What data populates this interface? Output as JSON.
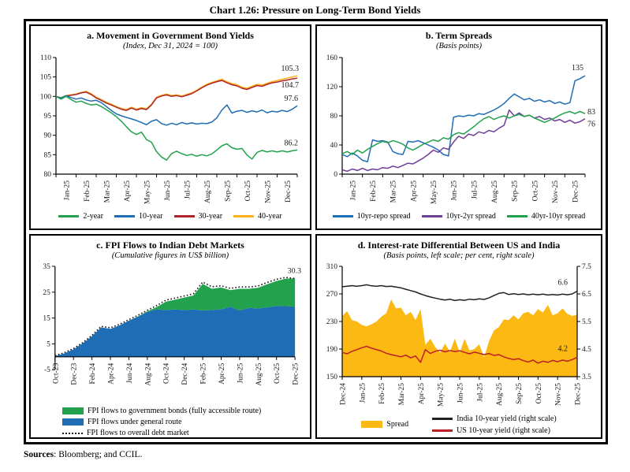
{
  "page": {
    "title": "Chart 1.26: Pressure on Long-Term Bond Yields",
    "sources_label": "Sources",
    "sources_text": ": Bloomberg; and CCIL."
  },
  "colors": {
    "green": "#22A24C",
    "blue": "#1E6DB5",
    "red30": "#B02428",
    "orange40": "#FBB117",
    "purple": "#6E3E98",
    "spread_yellow": "#FCB813",
    "india_black": "#242124",
    "us_red": "#BB2025",
    "dotted_black": "#111111",
    "axis_text": "#1A1A1A",
    "label_navy": "#44607C"
  },
  "chart_data": [
    {
      "key": "a",
      "type": "line",
      "title": "a. Movement in Government Bond Yields",
      "subtitle": "(Index, Dec 31, 2024 = 100)",
      "x": {
        "max": 12,
        "ticks": [
          0,
          1,
          2,
          3,
          4,
          5,
          6,
          7,
          8,
          9,
          10,
          11,
          12
        ],
        "labels": [
          "Jan-25",
          "Feb-25",
          "Mar-25",
          "Apr-25",
          "May-25",
          "Jun-25",
          "Jul-25",
          "Aug-25",
          "Sep-25",
          "Oct-25",
          "Nov-25",
          "Dec-25"
        ],
        "label_at": "center"
      },
      "y": {
        "min": 80,
        "max": 110,
        "cross": 80,
        "ticks": [
          110,
          105,
          100,
          95,
          90,
          85,
          80
        ]
      },
      "series": [
        {
          "name": "40-year",
          "type": "line",
          "color": "#FBB117",
          "y": [
            100,
            99.7,
            100.2,
            100.4,
            100.6,
            101,
            101.3,
            100.7,
            99.8,
            99.2,
            98.5,
            98,
            97.4,
            96.9,
            96.6,
            97.2,
            96.7,
            97.1,
            96.8,
            98,
            99.8,
            100.3,
            100.6,
            100.2,
            100.4,
            100.1,
            100.5,
            100.9,
            101.6,
            102.4,
            103.1,
            103.6,
            104,
            104.4,
            103.8,
            103.3,
            103,
            102.4,
            102.1,
            102.6,
            103.1,
            102.9,
            103.4,
            103.8,
            104.1,
            104.4,
            104.7,
            105,
            105.3
          ],
          "label": {
            "text": "105.3",
            "dx": 2,
            "dy": -6,
            "anchor": "end"
          }
        },
        {
          "name": "30-year",
          "type": "line",
          "color": "#B02428",
          "y": [
            100,
            99.6,
            100.1,
            100.3,
            100.5,
            100.9,
            101.1,
            100.5,
            99.6,
            99,
            98.3,
            97.8,
            97.2,
            96.7,
            96.4,
            97,
            96.5,
            96.9,
            96.6,
            97.8,
            99.6,
            100.1,
            100.4,
            100,
            100.2,
            99.9,
            100.3,
            100.7,
            101.4,
            102.2,
            102.9,
            103.4,
            103.8,
            104.1,
            103.5,
            103,
            102.7,
            102.1,
            101.8,
            102.3,
            102.8,
            102.6,
            103.1,
            103.5,
            103.7,
            104,
            104.2,
            104.5,
            104.7
          ],
          "label": {
            "text": "104.7",
            "dx": 2,
            "dy": 12,
            "anchor": "end"
          }
        },
        {
          "name": "10-year",
          "type": "line",
          "color": "#1E6DB5",
          "y": [
            100,
            99.6,
            100.2,
            99.7,
            99.3,
            99.6,
            99.1,
            98.8,
            99,
            98.4,
            97.4,
            96.4,
            95.5,
            95,
            94.6,
            94.2,
            93.8,
            93.3,
            92.7,
            93.6,
            94,
            93,
            92.6,
            93.1,
            92.7,
            93.3,
            92.9,
            93.2,
            92.9,
            93.1,
            93,
            93.4,
            94.5,
            96.5,
            97.8,
            95.7,
            96.2,
            96.4,
            95.9,
            96.3,
            96,
            96.5,
            95.8,
            96.2,
            96,
            96.4,
            96.1,
            96.7,
            97.6
          ],
          "label": {
            "text": "97.6",
            "dx": 1,
            "dy": -6,
            "anchor": "end"
          }
        },
        {
          "name": "2-year",
          "type": "line",
          "color": "#22A24C",
          "y": [
            100,
            99.3,
            100,
            99.2,
            98.5,
            98.8,
            98.2,
            97.8,
            98,
            97.4,
            96.6,
            95.8,
            94.8,
            93.6,
            92.2,
            90.9,
            90.2,
            90.8,
            88.9,
            88.2,
            85.8,
            84.4,
            83.6,
            85.3,
            85.9,
            85.3,
            84.8,
            85.1,
            84.6,
            85,
            84.7,
            85.2,
            86.2,
            87.3,
            87.8,
            86.8,
            86.4,
            86.6,
            84.9,
            83.9,
            85.6,
            86.1,
            85.7,
            86,
            85.7,
            86,
            85.7,
            86,
            86.2
          ],
          "label": {
            "text": "86.2",
            "dx": 1,
            "dy": -6,
            "anchor": "end"
          }
        }
      ],
      "legend": {
        "layout": "row",
        "items": [
          {
            "label": "2-year",
            "color": "#22A24C",
            "swatch": "line"
          },
          {
            "label": "10-year",
            "color": "#1E6DB5",
            "swatch": "line"
          },
          {
            "label": "30-year",
            "color": "#B02428",
            "swatch": "line"
          },
          {
            "label": "40-year",
            "color": "#FBB117",
            "swatch": "line"
          }
        ]
      }
    },
    {
      "key": "b",
      "type": "line",
      "title": "b. Term Spreads",
      "subtitle": "(Basis points)",
      "x": {
        "max": 12,
        "ticks": [
          0,
          1,
          2,
          3,
          4,
          5,
          6,
          7,
          8,
          9,
          10,
          11,
          12
        ],
        "labels": [
          "Jan-25",
          "Feb-25",
          "Mar-25",
          "Apr-25",
          "May-25",
          "Jun-25",
          "Jul-25",
          "Aug-25",
          "Sep-25",
          "Oct-25",
          "Nov-25",
          "Dec-25"
        ],
        "label_at": "center"
      },
      "y": {
        "min": 0,
        "max": 160,
        "cross": 0,
        "ticks": [
          160,
          120,
          80,
          40,
          0
        ]
      },
      "series": [
        {
          "name": "10yr-repo spread",
          "type": "line",
          "color": "#1E6DB5",
          "y": [
            27,
            24,
            29,
            25,
            19,
            17,
            47,
            45,
            46,
            44,
            31,
            28,
            27,
            45,
            44,
            46,
            43,
            40,
            37,
            33,
            27,
            25,
            78,
            80,
            79,
            81,
            80,
            83,
            82,
            85,
            88,
            92,
            97,
            104,
            110,
            106,
            102,
            104,
            100,
            102,
            99,
            101,
            97,
            99,
            96,
            98,
            128,
            131,
            135
          ],
          "label": {
            "text": "135",
            "dx": -2,
            "dy": -7,
            "anchor": "end"
          }
        },
        {
          "name": "10yr-2yr spread",
          "type": "line",
          "color": "#6E3E98",
          "y": [
            6,
            4,
            7,
            5,
            8,
            5,
            7,
            6,
            9,
            8,
            11,
            9,
            12,
            15,
            14,
            18,
            22,
            27,
            33,
            30,
            36,
            34,
            44,
            52,
            49,
            55,
            53,
            58,
            56,
            60,
            58,
            63,
            67,
            88,
            80,
            84,
            79,
            81,
            77,
            79,
            75,
            77,
            73,
            75,
            71,
            74,
            70,
            72,
            76
          ],
          "label": {
            "text": "76",
            "dx": 3,
            "dy": 10,
            "anchor": "start"
          }
        },
        {
          "name": "40yr-10yr spread",
          "type": "line",
          "color": "#22A24C",
          "y": [
            28,
            31,
            27,
            33,
            29,
            34,
            38,
            42,
            45,
            43,
            46,
            44,
            41,
            36,
            33,
            37,
            41,
            44,
            47,
            45,
            50,
            48,
            54,
            57,
            55,
            60,
            65,
            71,
            76,
            79,
            75,
            78,
            80,
            77,
            80,
            82,
            79,
            81,
            77,
            74,
            71,
            74,
            77,
            81,
            84,
            86,
            83,
            86,
            83
          ],
          "label": {
            "text": "83",
            "dx": 3,
            "dy": 1,
            "anchor": "start"
          }
        }
      ],
      "legend": {
        "layout": "row",
        "items": [
          {
            "label": "10yr-repo spread",
            "color": "#1E6DB5",
            "swatch": "line"
          },
          {
            "label": "10yr-2yr spread",
            "color": "#6E3E98",
            "swatch": "line"
          },
          {
            "label": "40yr-10yr spread",
            "color": "#22A24C",
            "swatch": "line"
          }
        ]
      }
    },
    {
      "key": "c",
      "type": "area",
      "title": "c. FPI Flows to Indian Debt Markets",
      "subtitle": "(Cumulative figures in US$ billion)",
      "x": {
        "max": 26,
        "ticks": [
          0,
          2,
          4,
          6,
          8,
          10,
          12,
          14,
          16,
          18,
          20,
          22,
          24,
          26
        ],
        "labels": [
          "Oct-23",
          "Dec-23",
          "Feb-24",
          "Apr-24",
          "Jun-24",
          "Aug-24",
          "Oct-24",
          "Dec-24",
          "Feb-25",
          "Apr-25",
          "Jun-25",
          "Aug-25",
          "Oct-25",
          "Dec-25"
        ],
        "label_at": "even"
      },
      "y": {
        "min": -5,
        "max": 35,
        "cross": 0,
        "ticks": [
          35,
          25,
          15,
          5,
          -5
        ]
      },
      "series": [
        {
          "name": "FPI flows under general route",
          "type": "area",
          "color": "#1E6DB5",
          "y": [
            0.3,
            1.3,
            2.9,
            5.2,
            8,
            11.4,
            10.8,
            12.2,
            14,
            15.6,
            17.3,
            18.4,
            18.1,
            18.3,
            18.1,
            18.3,
            17.9,
            18.1,
            18.4,
            19.3,
            17.9,
            18.9,
            18.7,
            19.1,
            19.7,
            19.6,
            19.4
          ]
        },
        {
          "name": "FPI flows to government bonds (fully accessible route)",
          "type": "area-between",
          "base": 0,
          "color": "#22A24C",
          "y": [
            0.3,
            1.3,
            2.9,
            5.2,
            8,
            11.4,
            10.8,
            12.2,
            14,
            15.7,
            17.6,
            19.2,
            21.3,
            22.1,
            22.9,
            23.7,
            28.2,
            26.3,
            26.8,
            25.8,
            26.3,
            26.3,
            26.7,
            28.1,
            29.3,
            30.2,
            30.3
          ]
        },
        {
          "name": "FPI flows to overall debt market",
          "type": "dotted",
          "color": "#111111",
          "y": [
            0.5,
            1.6,
            3.2,
            5.5,
            8.3,
            11.8,
            11.2,
            12.6,
            14.4,
            16.1,
            18,
            19.8,
            21.9,
            22.7,
            23.5,
            24.4,
            28.9,
            27.1,
            27.5,
            26.5,
            27,
            27,
            27.4,
            28.8,
            30,
            30.7,
            30.3
          ],
          "label": {
            "text": "30.3",
            "dx": 8,
            "dy": -7,
            "anchor": "end",
            "color": "#44607C"
          }
        }
      ],
      "legend": {
        "layout": "rows",
        "items": [
          {
            "label": "FPI flows to government bonds (fully accessible route)",
            "color": "#22A24C",
            "swatch": "rect"
          },
          {
            "label": "FPI flows under general route",
            "color": "#1E6DB5",
            "swatch": "rect"
          },
          {
            "label": "FPI flows to overall debt market",
            "color": "#111111",
            "swatch": "dotted"
          }
        ]
      }
    },
    {
      "key": "d",
      "type": "area",
      "title": "d. Interest-rate Differential Between US and India",
      "subtitle": "(Basis points, left scale; per cent, right scale)",
      "x": {
        "max": 12,
        "ticks": [
          0,
          1,
          2,
          3,
          4,
          5,
          6,
          7,
          8,
          9,
          10,
          11,
          12
        ],
        "labels": [
          "Dec-24",
          "Jan-25",
          "Feb-25",
          "Mar-25",
          "Apr-25",
          "May-25",
          "Jun-25",
          "Jul-25",
          "Aug-25",
          "Sep-25",
          "Oct-25",
          "Nov-25",
          "Dec-25"
        ],
        "label_at": "int"
      },
      "y": {
        "min": 150,
        "max": 310,
        "cross": 150,
        "ticks": [
          310,
          270,
          230,
          190,
          150
        ]
      },
      "y_right": {
        "min": 3.5,
        "max": 7.5,
        "ticks": [
          7.5,
          6.5,
          5.5,
          4.5,
          3.5
        ]
      },
      "series": [
        {
          "name": "Spread",
          "type": "area",
          "color": "#FCB813",
          "scale": "left",
          "y": [
            238,
            245,
            232,
            230,
            225,
            223,
            226,
            230,
            237,
            242,
            262,
            249,
            250,
            239,
            244,
            232,
            248,
            196,
            205,
            193,
            185,
            198,
            186,
            205,
            185,
            205,
            188,
            190,
            197,
            178,
            202,
            217,
            222,
            233,
            232,
            239,
            233,
            242,
            244,
            239,
            248,
            243,
            254,
            239,
            242,
            249,
            241,
            238,
            240
          ]
        },
        {
          "name": "India 10-year yield (right scale)",
          "type": "line",
          "color": "#242124",
          "scale": "right",
          "y": [
            6.76,
            6.78,
            6.8,
            6.78,
            6.8,
            6.83,
            6.79,
            6.78,
            6.8,
            6.77,
            6.78,
            6.75,
            6.72,
            6.67,
            6.62,
            6.57,
            6.5,
            6.44,
            6.39,
            6.35,
            6.31,
            6.28,
            6.31,
            6.26,
            6.29,
            6.27,
            6.31,
            6.29,
            6.32,
            6.3,
            6.36,
            6.44,
            6.52,
            6.55,
            6.48,
            6.51,
            6.48,
            6.5,
            6.47,
            6.49,
            6.47,
            6.49,
            6.46,
            6.48,
            6.46,
            6.49,
            6.47,
            6.5,
            6.6
          ],
          "label": {
            "text": "6.6",
            "dx": -12,
            "dy": -8,
            "anchor": "end",
            "color": "#3A3A44"
          }
        },
        {
          "name": "US 10-year yield (right scale)",
          "type": "line",
          "color": "#BB2025",
          "scale": "right",
          "y": [
            4.38,
            4.33,
            4.42,
            4.48,
            4.55,
            4.6,
            4.53,
            4.48,
            4.43,
            4.35,
            4.3,
            4.26,
            4.22,
            4.28,
            4.18,
            4.25,
            4.02,
            4.48,
            4.34,
            4.42,
            4.46,
            4.4,
            4.45,
            4.41,
            4.44,
            4.38,
            4.33,
            4.39,
            4.35,
            4.3,
            4.34,
            4.27,
            4.3,
            4.22,
            4.16,
            4.12,
            4.15,
            4.08,
            4.03,
            4.1,
            3.99,
            4.06,
            4.02,
            4.09,
            4.04,
            4.1,
            4.06,
            4.12,
            4.2
          ],
          "label": {
            "text": "4.2",
            "dx": -12,
            "dy": -8,
            "anchor": "end",
            "color": "#BB2025"
          }
        }
      ],
      "legend": {
        "layout": "split",
        "items": [
          {
            "label": "Spread",
            "color": "#FCB813",
            "swatch": "rect"
          },
          {
            "label": "India 10-year yield (right scale)",
            "color": "#242124",
            "swatch": "line"
          },
          {
            "label": "US 10-year yield (right scale)",
            "color": "#BB2025",
            "swatch": "line"
          }
        ]
      }
    }
  ]
}
